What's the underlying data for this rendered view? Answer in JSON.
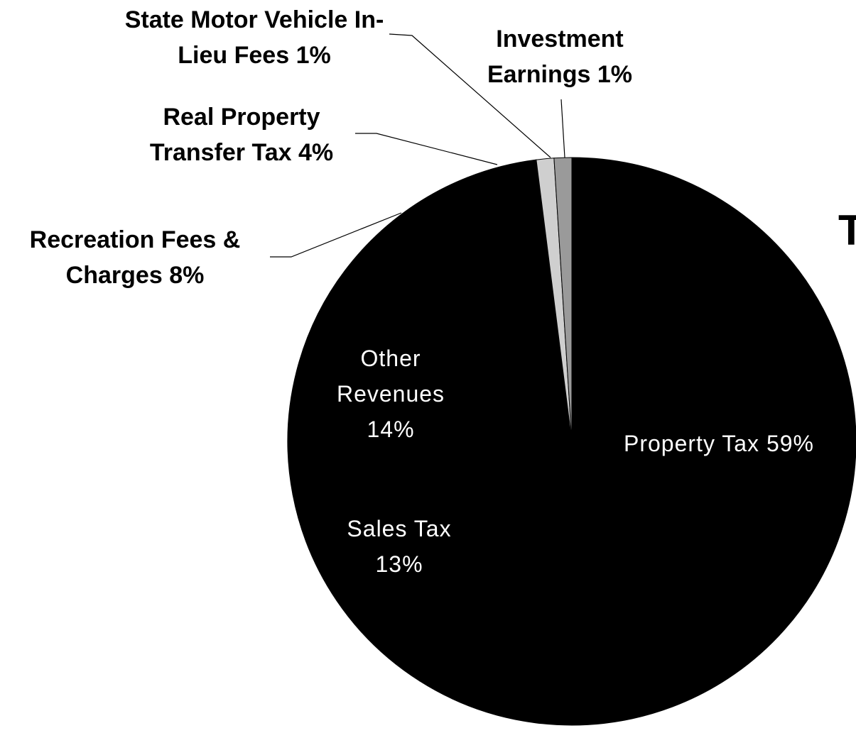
{
  "chart_data": {
    "type": "pie",
    "title": "T",
    "categories": [
      "Property Tax",
      "Sales Tax",
      "Other Revenues",
      "Recreation Fees & Charges",
      "Real Property Transfer Tax",
      "State Motor Vehicle In-Lieu Fees",
      "Investment Earnings"
    ],
    "values": [
      59,
      13,
      14,
      8,
      4,
      1,
      1
    ],
    "value_labels": [
      "59%",
      "13%",
      "14%",
      "8%",
      "4%",
      "1%",
      "1%"
    ],
    "colors": [
      "#000000",
      "#000000",
      "#000000",
      "#000000",
      "#000000",
      "#cfcfcf",
      "#9a9a9a"
    ]
  }
}
